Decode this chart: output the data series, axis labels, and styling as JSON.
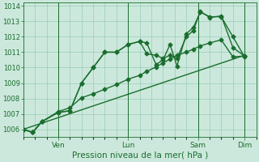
{
  "xlabel": "Pression niveau de la mer( hPa )",
  "bg_color": "#cce8dc",
  "plot_bg_color": "#cce8dc",
  "grid_color": "#99ccb8",
  "line_color": "#1a6e2e",
  "ylim": [
    1005.5,
    1014.2
  ],
  "yticks": [
    1006,
    1007,
    1008,
    1009,
    1010,
    1011,
    1012,
    1013,
    1014
  ],
  "x_day_labels": [
    "Ven",
    "Lun",
    "Sam",
    "Dim"
  ],
  "xlim": [
    0,
    10
  ],
  "series1_x": [
    0.0,
    0.4,
    0.8,
    1.5,
    2.0,
    2.5,
    3.0,
    3.5,
    4.0,
    4.5,
    5.0,
    5.3,
    5.7,
    6.0,
    6.3,
    6.6,
    7.0,
    7.3,
    7.6,
    8.0,
    8.5,
    9.0,
    9.5
  ],
  "series1_y": [
    1006.0,
    1005.8,
    1006.5,
    1007.1,
    1007.2,
    1009.0,
    1010.0,
    1011.0,
    1011.0,
    1011.5,
    1011.7,
    1011.6,
    1010.2,
    1010.5,
    1011.5,
    1010.1,
    1012.2,
    1012.6,
    1013.6,
    1013.3,
    1013.3,
    1012.0,
    1010.7
  ],
  "series2_x": [
    0.0,
    0.4,
    0.8,
    1.5,
    2.0,
    2.5,
    3.0,
    3.5,
    4.0,
    4.5,
    5.0,
    5.3,
    5.7,
    6.0,
    6.3,
    6.6,
    7.0,
    7.3,
    7.6,
    8.0,
    8.5,
    9.0,
    9.5
  ],
  "series2_y": [
    1006.0,
    1005.8,
    1006.5,
    1007.1,
    1007.2,
    1009.0,
    1010.0,
    1011.0,
    1011.0,
    1011.5,
    1011.7,
    1010.9,
    1010.8,
    1010.6,
    1010.8,
    1010.6,
    1012.0,
    1012.4,
    1013.65,
    1013.25,
    1013.35,
    1011.3,
    1010.75
  ],
  "series3_x": [
    0.0,
    9.5
  ],
  "series3_y": [
    1006.0,
    1010.8
  ],
  "series4_x": [
    0.0,
    0.4,
    0.8,
    1.5,
    2.0,
    2.5,
    3.0,
    3.5,
    4.0,
    4.5,
    5.0,
    5.3,
    5.7,
    6.0,
    6.3,
    6.6,
    7.0,
    7.3,
    7.6,
    8.0,
    8.5,
    9.0,
    9.5
  ],
  "series4_y": [
    1006.0,
    1005.8,
    1006.5,
    1007.15,
    1007.4,
    1008.05,
    1008.3,
    1008.6,
    1008.9,
    1009.25,
    1009.5,
    1009.75,
    1010.05,
    1010.3,
    1010.55,
    1010.8,
    1011.0,
    1011.2,
    1011.4,
    1011.6,
    1011.8,
    1010.7,
    1010.75
  ],
  "vline_positions": [
    1.5,
    4.5,
    7.5,
    9.5
  ],
  "xlabel_fontsize": 7.5,
  "ytick_fontsize": 6,
  "xtick_fontsize": 6.5
}
